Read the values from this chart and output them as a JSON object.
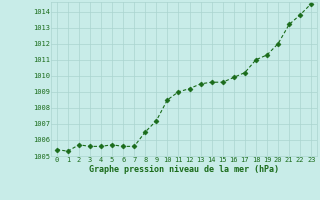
{
  "x": [
    0,
    1,
    2,
    3,
    4,
    5,
    6,
    7,
    8,
    9,
    10,
    11,
    12,
    13,
    14,
    15,
    16,
    17,
    18,
    19,
    20,
    21,
    22,
    23
  ],
  "y": [
    1005.4,
    1005.3,
    1005.7,
    1005.6,
    1005.6,
    1005.7,
    1005.6,
    1005.6,
    1006.5,
    1007.2,
    1008.5,
    1009.0,
    1009.2,
    1009.5,
    1009.6,
    1009.6,
    1009.9,
    1010.2,
    1011.0,
    1011.3,
    1012.0,
    1013.2,
    1013.8,
    1014.5
  ],
  "line_color": "#1a6b1a",
  "marker_color": "#1a6b1a",
  "bg_color": "#c8ece8",
  "grid_color": "#aad4cf",
  "xlabel": "Graphe pression niveau de la mer (hPa)",
  "xlabel_color": "#1a6b1a",
  "ylim": [
    1005.0,
    1014.6
  ],
  "xlim": [
    -0.5,
    23.5
  ],
  "yticks": [
    1005,
    1006,
    1007,
    1008,
    1009,
    1010,
    1011,
    1012,
    1013,
    1014
  ],
  "xticks": [
    0,
    1,
    2,
    3,
    4,
    5,
    6,
    7,
    8,
    9,
    10,
    11,
    12,
    13,
    14,
    15,
    16,
    17,
    18,
    19,
    20,
    21,
    22,
    23
  ],
  "tick_fontsize": 5.0,
  "xlabel_fontsize": 6.0
}
